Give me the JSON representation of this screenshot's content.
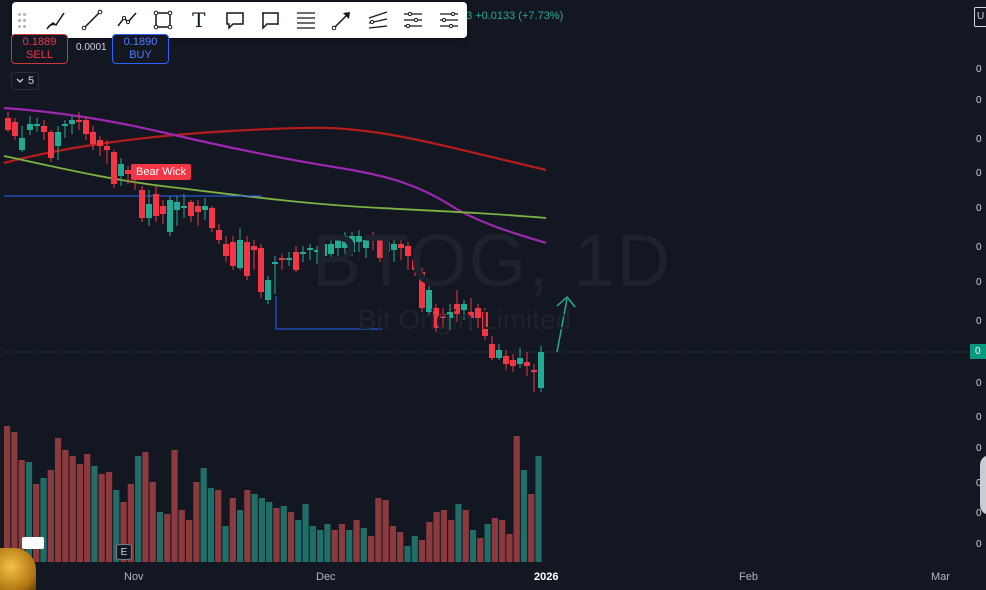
{
  "toolbar": {
    "tools": [
      {
        "name": "brush-icon"
      },
      {
        "name": "trend-line-icon"
      },
      {
        "name": "path-icon"
      },
      {
        "name": "rectangle-icon"
      },
      {
        "name": "text-icon",
        "glyph": "T"
      },
      {
        "name": "callout-icon"
      },
      {
        "name": "comment-icon"
      },
      {
        "name": "fib-retracement-icon"
      },
      {
        "name": "arrow-marker-icon"
      },
      {
        "name": "regression-trend-icon"
      },
      {
        "name": "pitchfork-icon"
      },
      {
        "name": "parallel-channel-icon"
      }
    ]
  },
  "header": {
    "change_fragment": "3",
    "change_text": "+0.0133 (+7.73%)"
  },
  "trade": {
    "sell_price": "0.1889",
    "sell_label": "SELL",
    "spread": "0.0001",
    "buy_price": "0.1890",
    "buy_label": "BUY"
  },
  "indicators": {
    "count": "5"
  },
  "annotation": {
    "bear_label": "Bear Wick"
  },
  "watermark": {
    "symbol": "BTOG, 1D",
    "description": "Bit Origin Limited"
  },
  "price_scale": {
    "top_box": "U",
    "ticks": [
      "0",
      "0",
      "0",
      "0",
      "0",
      "0",
      "0",
      "0",
      "0",
      "0",
      "0",
      "0",
      "0",
      "0",
      "0"
    ],
    "current": "0"
  },
  "time_axis": {
    "labels": [
      {
        "text": "Nov",
        "year": false
      },
      {
        "text": "Dec",
        "year": false
      },
      {
        "text": "2026",
        "year": true
      },
      {
        "text": "Feb",
        "year": false
      },
      {
        "text": "Mar",
        "year": false
      }
    ]
  },
  "earnings_marker": "E",
  "colors": {
    "background": "#131722",
    "up": "#22ab94",
    "down": "#f23645",
    "volume_up": "#1f6e68",
    "volume_down": "#8c3a3e",
    "ma_fast": "#9c27b0",
    "ma_mid": "#7cb342",
    "ma_slow": "#b71c1c",
    "support_line": "#2962ff",
    "arrow": "#22ab94"
  }
}
